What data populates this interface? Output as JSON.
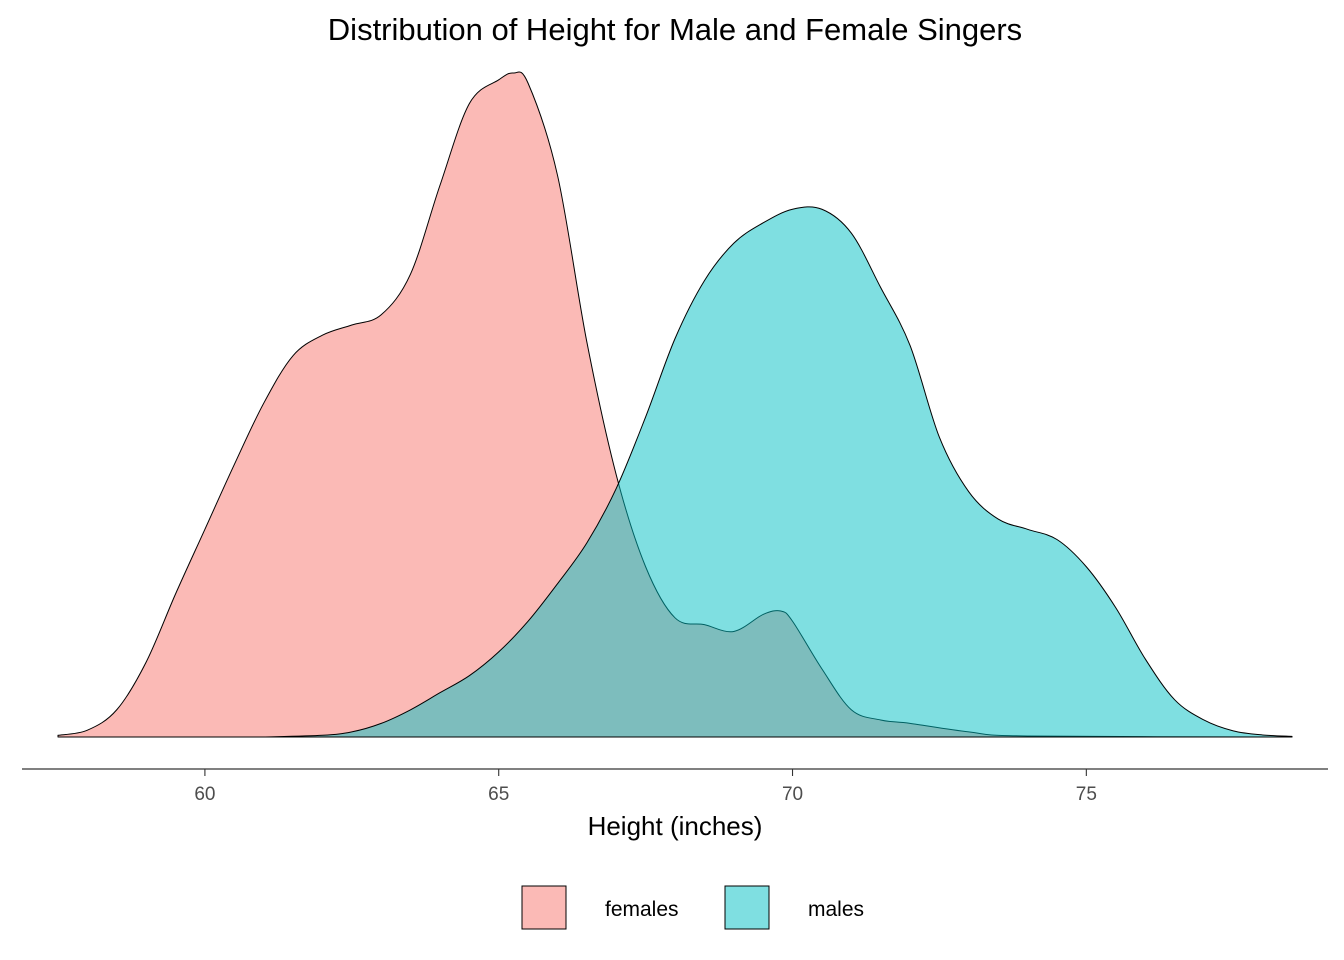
{
  "chart_data": {
    "type": "area",
    "subtype": "density",
    "title": "Distribution of Height for Male and Female Singers",
    "xlabel": "Height (inches)",
    "ylabel": "",
    "xlim": [
      57.5,
      78.5
    ],
    "ylim": [
      0,
      0.2
    ],
    "x_ticks": [
      60,
      65,
      70,
      75
    ],
    "y_axis_shown": false,
    "grid": false,
    "legend_position": "bottom",
    "fill_alpha": 0.5,
    "series": [
      {
        "name": "females",
        "color": "#F8766D",
        "x": [
          57.5,
          58,
          58.5,
          59,
          59.5,
          60,
          60.5,
          61,
          61.5,
          62,
          62.5,
          63,
          63.5,
          64,
          64.5,
          65,
          65.25,
          65.5,
          66,
          66.5,
          67,
          67.5,
          68,
          68.5,
          69,
          69.5,
          69.8,
          70,
          70.5,
          71,
          71.5,
          72,
          73,
          74,
          78.5
        ],
        "y": [
          0.0005,
          0.002,
          0.008,
          0.022,
          0.042,
          0.061,
          0.08,
          0.098,
          0.112,
          0.118,
          0.121,
          0.124,
          0.136,
          0.162,
          0.186,
          0.193,
          0.195,
          0.192,
          0.165,
          0.116,
          0.077,
          0.05,
          0.035,
          0.033,
          0.031,
          0.036,
          0.037,
          0.034,
          0.02,
          0.008,
          0.005,
          0.004,
          0.0015,
          0.0003,
          0.0
        ]
      },
      {
        "name": "males",
        "color": "#00BFC4",
        "x": [
          61,
          62,
          62.5,
          63,
          63.5,
          64,
          64.5,
          65,
          65.5,
          66,
          66.5,
          67,
          67.5,
          68,
          68.5,
          69,
          69.5,
          70,
          70.5,
          71,
          71.5,
          72,
          72.5,
          73,
          73.5,
          74,
          74.5,
          75,
          75.5,
          76,
          76.5,
          77,
          77.5,
          78,
          78.5
        ],
        "y": [
          0.0,
          0.0005,
          0.0015,
          0.004,
          0.008,
          0.013,
          0.018,
          0.025,
          0.034,
          0.045,
          0.057,
          0.073,
          0.094,
          0.117,
          0.134,
          0.145,
          0.151,
          0.155,
          0.155,
          0.148,
          0.132,
          0.115,
          0.088,
          0.072,
          0.064,
          0.061,
          0.058,
          0.05,
          0.038,
          0.023,
          0.011,
          0.005,
          0.0018,
          0.0006,
          0.0002
        ]
      }
    ]
  }
}
